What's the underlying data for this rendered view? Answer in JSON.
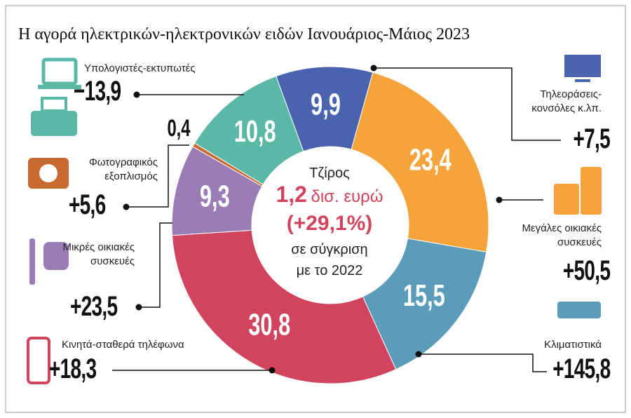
{
  "chart_data": {
    "type": "pie",
    "donut": true,
    "title": "Η αγορά ηλεκτρικών-ηλεκτρονικών ειδών Ιανουάριος-Μάιος 2023",
    "categories": [
      "Τηλεοράσεις-κονσόλες κ.λπ.",
      "Μεγάλες οικιακές συσκευές",
      "Κλιματιστικά",
      "Κινητά-σταθερά τηλέφωνα",
      "Μικρές οικιακές συσκευές",
      "Φωτογραφικός εξοπλισμός",
      "Υπολογιστές-εκτυπωτές"
    ],
    "values": [
      9.9,
      23.4,
      15.5,
      30.8,
      9.3,
      0.4,
      10.8
    ],
    "value_labels": [
      "9,9",
      "23,4",
      "15,5",
      "30,8",
      "9,3",
      "0,4",
      "10,8"
    ],
    "colors": [
      "#4a63ae",
      "#f5a33a",
      "#5b9cba",
      "#d2435e",
      "#9b7db6",
      "#c8692f",
      "#5cb8a6"
    ],
    "changes": [
      7.5,
      50.5,
      145.8,
      18.3,
      23.5,
      5.6,
      -13.9
    ],
    "change_labels": [
      "+7,5",
      "+50,5",
      "+145,8",
      "+18,3",
      "+23,5",
      "+5,6",
      "−13,9"
    ],
    "center": {
      "label": "Τζίρος",
      "value": "1,2",
      "unit": "δισ. ευρώ",
      "change": "(+29,1%)",
      "compare": "σε σύγκριση με το 2022"
    }
  }
}
